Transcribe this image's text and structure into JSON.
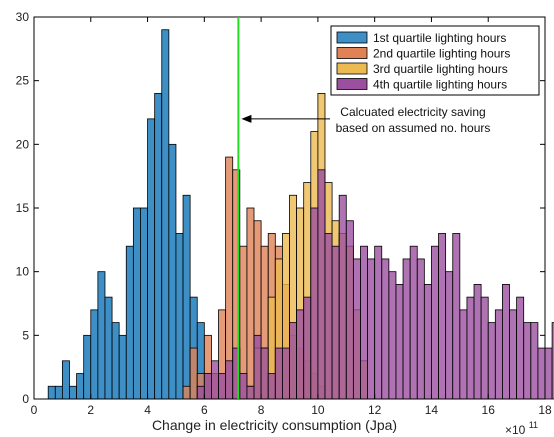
{
  "chart_data": {
    "type": "bar",
    "subtype": "overlapping-histogram",
    "title": "",
    "xlabel": "Change in electricity consumption (Jpa)",
    "ylabel": "",
    "x_exponent_label": "×10",
    "x_exponent_power": "11",
    "xlim": [
      0,
      18
    ],
    "ylim": [
      0,
      30
    ],
    "xticks": [
      0,
      2,
      4,
      6,
      8,
      10,
      12,
      14,
      16,
      18
    ],
    "yticks": [
      0,
      5,
      10,
      15,
      20,
      25,
      30
    ],
    "bin_width": 0.25,
    "grid": false,
    "legend_position": "top-right",
    "series": [
      {
        "name": "1st quartile lighting hours",
        "color": "#3d8fc6",
        "bin_start": 0.5,
        "values": [
          1,
          1,
          3,
          1,
          2,
          5,
          7,
          10,
          8,
          6,
          5,
          12,
          15,
          15,
          22,
          24,
          29,
          20,
          13,
          16,
          8,
          6,
          2
        ]
      },
      {
        "name": "2nd quartile lighting hours",
        "color": "#e08256",
        "bin_start": 5.25,
        "values": [
          1,
          4,
          2,
          5,
          2,
          7,
          19,
          18,
          12,
          15,
          14,
          12,
          13,
          12,
          9,
          5,
          4,
          3,
          2,
          1
        ]
      },
      {
        "name": "3rd quartile lighting hours",
        "color": "#ecba50",
        "bin_start": 7.5,
        "values": [
          1,
          4,
          4,
          8,
          11,
          13,
          16,
          15,
          17,
          21,
          24,
          17,
          14,
          13,
          12,
          7,
          3
        ]
      },
      {
        "name": "4th quartile lighting hours",
        "color": "#9b4f9f",
        "bin_start": 5.75,
        "values": [
          1,
          2,
          3,
          2,
          3,
          4,
          2,
          1,
          5,
          4,
          2,
          4,
          4,
          6,
          7,
          8,
          15,
          18,
          13,
          12,
          16,
          14,
          11,
          12,
          11,
          12,
          11,
          10,
          9,
          11,
          12,
          11,
          9,
          12,
          13,
          10,
          13,
          7,
          8,
          9,
          8,
          6,
          7,
          9,
          7,
          8,
          6,
          6,
          4,
          4,
          6,
          5,
          3,
          1
        ]
      }
    ],
    "reference_line": {
      "x": 7.2,
      "color": "#22dd22"
    },
    "annotation": {
      "lines": [
        "Calcuated electricity saving",
        "based on assumed no. hours"
      ],
      "arrow_to_x": 7.2,
      "arrow_y": 22
    }
  }
}
